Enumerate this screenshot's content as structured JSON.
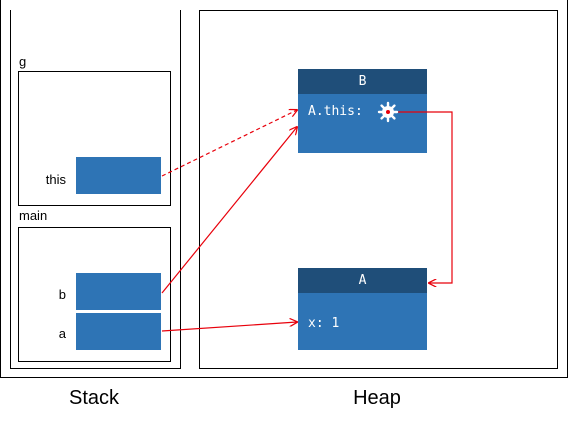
{
  "regions": {
    "stack_label": "Stack",
    "heap_label": "Heap"
  },
  "frames": {
    "g": {
      "label": "g",
      "var_this": "this"
    },
    "main": {
      "label": "main",
      "var_b": "b",
      "var_a": "a"
    }
  },
  "objects": {
    "B": {
      "title": "B",
      "field": "A.this:"
    },
    "A": {
      "title": "A",
      "field": "x: 1"
    }
  },
  "colors": {
    "object_header": "#1f4e79",
    "object_body": "#2e74b5",
    "arrow": "#e8000b"
  }
}
